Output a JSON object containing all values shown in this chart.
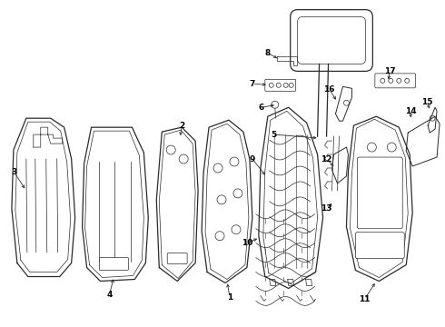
{
  "background_color": "#ffffff",
  "line_color": "#2a2a2a",
  "label_color": "#000000",
  "figsize": [
    4.9,
    3.6
  ],
  "dpi": 100,
  "lw_main": 0.9,
  "lw_thin": 0.5,
  "lw_med": 0.7,
  "label_fontsize": 6.5,
  "arrow_fontsize": 6.0
}
